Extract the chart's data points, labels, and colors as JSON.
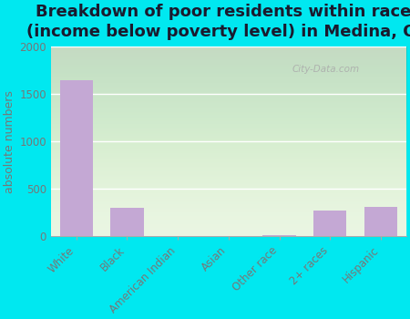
{
  "title": "Breakdown of poor residents within races\n(income below poverty level) in Medina, OH",
  "categories": [
    "White",
    "Black",
    "American Indian",
    "Asian",
    "Other race",
    "2+ races",
    "Hispanic"
  ],
  "values": [
    1650,
    300,
    0,
    0,
    15,
    270,
    310
  ],
  "bar_color": "#c4a8d4",
  "ylabel": "absolute numbers",
  "ylim": [
    0,
    2000
  ],
  "yticks": [
    0,
    500,
    1000,
    1500,
    2000
  ],
  "bg_outer": "#00e8f0",
  "bg_plot": "#e8f5e0",
  "title_fontsize": 13,
  "ylabel_fontsize": 9,
  "tick_fontsize": 8.5,
  "title_color": "#1a1a2e",
  "tick_color": "#777777"
}
